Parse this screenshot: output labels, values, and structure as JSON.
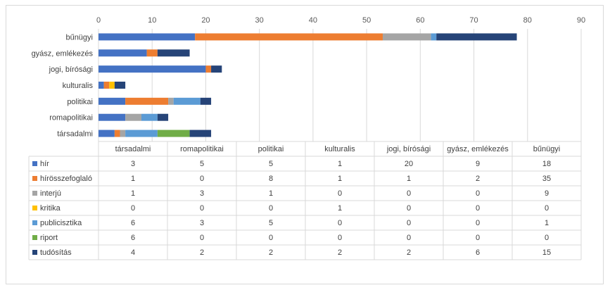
{
  "chart_data": {
    "type": "bar",
    "orientation": "horizontal",
    "stacked": true,
    "title": "",
    "xlabel": "",
    "ylabel": "",
    "xlim": [
      0,
      90
    ],
    "xticks": [
      "0",
      "10",
      "20",
      "30",
      "40",
      "50",
      "60",
      "70",
      "80",
      "90"
    ],
    "grid": true,
    "legend": "data-table-below",
    "categories": [
      "társadalmi",
      "romapolitikai",
      "politikai",
      "kulturalis",
      "jogi, bírósági",
      "gyász, emlékezés",
      "bűnügyi"
    ],
    "series": [
      {
        "name": "hír",
        "color": "#4472c4",
        "values": [
          3,
          5,
          5,
          1,
          20,
          9,
          18
        ]
      },
      {
        "name": "hírösszefoglaló",
        "color": "#ed7d31",
        "values": [
          1,
          0,
          8,
          1,
          1,
          2,
          35
        ]
      },
      {
        "name": "interjú",
        "color": "#a5a5a5",
        "values": [
          1,
          3,
          1,
          0,
          0,
          0,
          9
        ]
      },
      {
        "name": "kritika",
        "color": "#ffc000",
        "values": [
          0,
          0,
          0,
          1,
          0,
          0,
          0
        ]
      },
      {
        "name": "publicisztika",
        "color": "#5b9bd5",
        "values": [
          6,
          3,
          5,
          0,
          0,
          0,
          1
        ]
      },
      {
        "name": "riport",
        "color": "#70ad47",
        "values": [
          6,
          0,
          0,
          0,
          0,
          0,
          0
        ]
      },
      {
        "name": "tudósítás",
        "color": "#264478",
        "values": [
          4,
          2,
          2,
          2,
          2,
          6,
          15
        ]
      }
    ]
  }
}
